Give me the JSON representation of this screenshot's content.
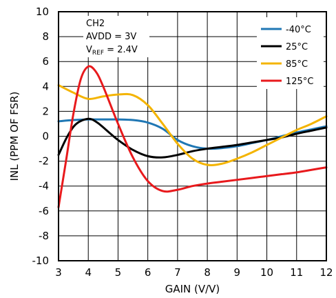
{
  "chart_data": {
    "type": "line",
    "xlabel": "GAIN (V/V)",
    "ylabel": "INL (PPM OF FSR)",
    "xlim": [
      3,
      12
    ],
    "ylim": [
      -10,
      10
    ],
    "xticks": [
      3,
      4,
      5,
      6,
      7,
      8,
      9,
      10,
      11,
      12
    ],
    "yticks": [
      -10,
      -8,
      -6,
      -4,
      -2,
      0,
      2,
      4,
      6,
      8,
      10
    ],
    "grid": true,
    "legend_position": "top-right",
    "annotation": {
      "line1": "CH2",
      "line2": "AVDD = 3V",
      "line3_prefix": "V",
      "line3_sub": "REF",
      "line3_suffix": " = 2.4V"
    },
    "series": [
      {
        "name": "-40°C",
        "color": "#1f77b4",
        "x": [
          3,
          3.5,
          4,
          4.5,
          5,
          5.5,
          6,
          6.5,
          7,
          7.5,
          8,
          8.5,
          9,
          9.5,
          10,
          10.5,
          11,
          11.5,
          12
        ],
        "y": [
          1.2,
          1.3,
          1.35,
          1.35,
          1.35,
          1.3,
          1.1,
          0.6,
          -0.3,
          -0.8,
          -1.0,
          -0.95,
          -0.8,
          -0.55,
          -0.3,
          0.0,
          0.3,
          0.55,
          0.8
        ]
      },
      {
        "name": "25°C",
        "color": "#000000",
        "x": [
          3,
          3.3,
          3.6,
          4,
          4.3,
          4.7,
          5,
          5.5,
          6,
          6.5,
          7,
          7.5,
          8,
          8.5,
          9,
          9.5,
          10,
          10.5,
          11,
          11.5,
          12
        ],
        "y": [
          -1.5,
          0.0,
          1.0,
          1.4,
          1.1,
          0.3,
          -0.3,
          -1.1,
          -1.6,
          -1.7,
          -1.5,
          -1.2,
          -1.0,
          -0.85,
          -0.7,
          -0.5,
          -0.3,
          -0.1,
          0.2,
          0.45,
          0.7
        ]
      },
      {
        "name": "85°C",
        "color": "#f4b400",
        "x": [
          3,
          3.5,
          4,
          4.5,
          5,
          5.5,
          6,
          6.5,
          7,
          7.5,
          8,
          8.5,
          9,
          9.5,
          10,
          10.5,
          11,
          11.5,
          12
        ],
        "y": [
          4.1,
          3.5,
          3.0,
          3.2,
          3.35,
          3.3,
          2.5,
          1.0,
          -0.6,
          -1.8,
          -2.3,
          -2.2,
          -1.8,
          -1.3,
          -0.7,
          -0.1,
          0.5,
          1.0,
          1.6
        ]
      },
      {
        "name": "125°C",
        "color": "#e8191c",
        "x": [
          3,
          3.25,
          3.5,
          3.75,
          4,
          4.25,
          4.5,
          5,
          5.5,
          6,
          6.5,
          7,
          7.5,
          8,
          8.5,
          9,
          9.5,
          10,
          10.5,
          11,
          11.5,
          12
        ],
        "y": [
          -5.7,
          -2.0,
          1.8,
          4.6,
          5.6,
          5.2,
          4.0,
          1.0,
          -1.7,
          -3.6,
          -4.4,
          -4.3,
          -4.0,
          -3.8,
          -3.65,
          -3.5,
          -3.35,
          -3.2,
          -3.05,
          -2.9,
          -2.7,
          -2.5
        ]
      }
    ]
  }
}
